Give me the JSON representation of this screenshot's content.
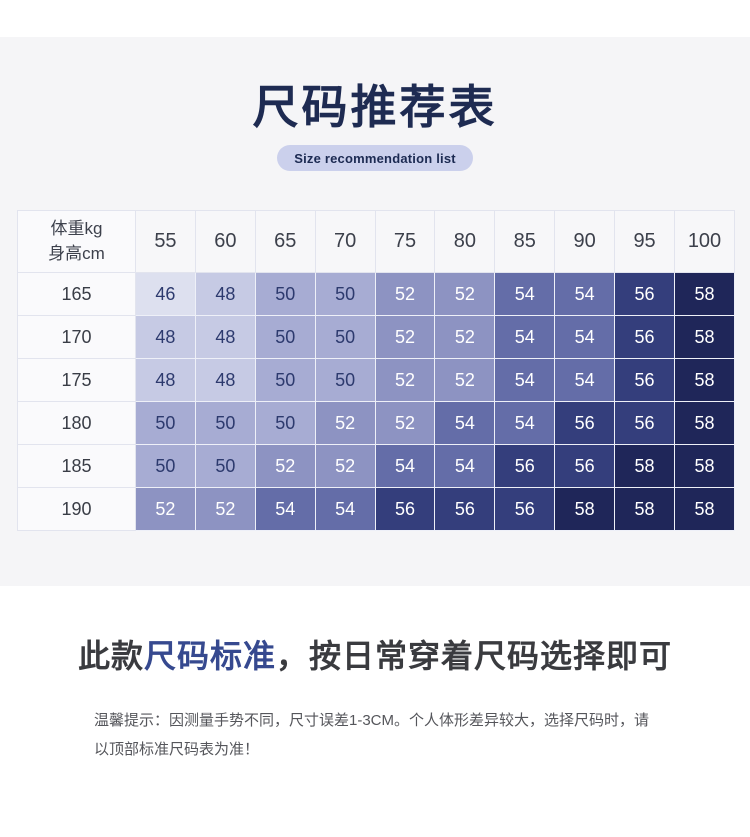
{
  "header": {
    "title": "尺码推荐表",
    "subtitle": "Size recommendation list"
  },
  "table": {
    "corner_header_line1": "体重kg",
    "corner_header_line2": "身高cm",
    "weight_columns": [
      "55",
      "60",
      "65",
      "70",
      "75",
      "80",
      "85",
      "90",
      "95",
      "100"
    ],
    "rows": [
      {
        "height": "165",
        "sizes": [
          46,
          48,
          50,
          50,
          52,
          52,
          54,
          54,
          56,
          58
        ]
      },
      {
        "height": "170",
        "sizes": [
          48,
          48,
          50,
          50,
          52,
          52,
          54,
          54,
          56,
          58
        ]
      },
      {
        "height": "175",
        "sizes": [
          48,
          48,
          50,
          50,
          52,
          52,
          54,
          54,
          56,
          58
        ]
      },
      {
        "height": "180",
        "sizes": [
          50,
          50,
          50,
          52,
          52,
          54,
          54,
          56,
          56,
          58
        ]
      },
      {
        "height": "185",
        "sizes": [
          50,
          50,
          52,
          52,
          54,
          54,
          56,
          56,
          58,
          58
        ]
      },
      {
        "height": "190",
        "sizes": [
          52,
          52,
          54,
          54,
          56,
          56,
          56,
          58,
          58,
          58
        ]
      }
    ],
    "size_colors": {
      "46": {
        "bg": "#dde0ef",
        "text": "#2d3a6e"
      },
      "48": {
        "bg": "#c6cae4",
        "text": "#2d3a6e"
      },
      "50": {
        "bg": "#a7acd3",
        "text": "#2d3a6e"
      },
      "52": {
        "bg": "#8d93c2",
        "text": "#ffffff"
      },
      "54": {
        "bg": "#646da8",
        "text": "#ffffff"
      },
      "56": {
        "bg": "#343e7c",
        "text": "#ffffff"
      },
      "58": {
        "bg": "#1f2659",
        "text": "#ffffff"
      }
    }
  },
  "footer": {
    "heading_part1": "此款",
    "heading_highlight": "尺码标准",
    "heading_part2": "，按日常穿着尺码选择即可",
    "note": "温馨提示：因测量手势不同，尺寸误差1-3CM。个人体形差异较大，选择尺码时，请以顶部标准尺码表为准！"
  },
  "colors": {
    "accent_navy": "#1e2b52",
    "highlight_blue": "#36498f",
    "pill_bg": "#cbd0ec",
    "section_bg": "#f5f5f7"
  },
  "chart_data": {
    "type": "heatmap",
    "title": "尺码推荐表",
    "subtitle": "Size recommendation list",
    "xlabel": "体重kg",
    "ylabel": "身高cm",
    "x": [
      55,
      60,
      65,
      70,
      75,
      80,
      85,
      90,
      95,
      100
    ],
    "y": [
      165,
      170,
      175,
      180,
      185,
      190
    ],
    "values": [
      [
        46,
        48,
        50,
        50,
        52,
        52,
        54,
        54,
        56,
        58
      ],
      [
        48,
        48,
        50,
        50,
        52,
        52,
        54,
        54,
        56,
        58
      ],
      [
        48,
        48,
        50,
        50,
        52,
        52,
        54,
        54,
        56,
        58
      ],
      [
        50,
        50,
        50,
        52,
        52,
        54,
        54,
        56,
        56,
        58
      ],
      [
        50,
        50,
        52,
        52,
        54,
        54,
        56,
        56,
        58,
        58
      ],
      [
        52,
        52,
        54,
        54,
        56,
        56,
        56,
        58,
        58,
        58
      ]
    ],
    "value_range": [
      46,
      58
    ],
    "colorscale": [
      "#dde0ef",
      "#1f2659"
    ],
    "legend_position": "none",
    "grid": true
  }
}
